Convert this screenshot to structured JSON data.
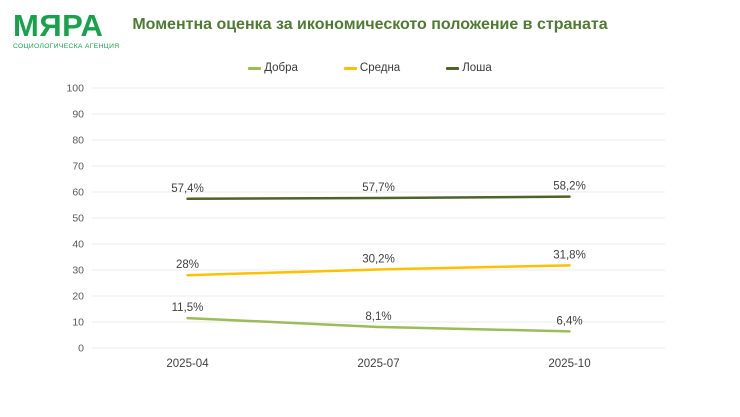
{
  "logo": {
    "name": "МЯРА",
    "subtitle": "СОЦИОЛОГИЧЕСКА АГЕНЦИЯ",
    "color": "#17a24b"
  },
  "chart_data": {
    "type": "line",
    "title": "Моментна оценка за икономическото положение в страната",
    "title_color": "#4e7b33",
    "categories": [
      "2025-04",
      "2025-07",
      "2025-10"
    ],
    "series": [
      {
        "key": "dobra",
        "name": "Добра",
        "color": "#9cbb59",
        "values": [
          11.5,
          8.1,
          6.4
        ],
        "point_labels": [
          "11,5%",
          "8,1%",
          "6,4%"
        ]
      },
      {
        "key": "sredna",
        "name": "Средна",
        "color": "#ffc000",
        "values": [
          28,
          30.2,
          31.8
        ],
        "point_labels": [
          "28%",
          "30,2%",
          "31,8%"
        ]
      },
      {
        "key": "losha",
        "name": "Лоша",
        "color": "#4f6228",
        "values": [
          57.4,
          57.7,
          58.2
        ],
        "point_labels": [
          "57,4%",
          "57,7%",
          "58,2%"
        ]
      }
    ],
    "xlabel": "",
    "ylabel": "",
    "ylim": [
      0,
      100
    ],
    "ytick_step": 10,
    "grid": true,
    "legend_position": "top",
    "gridline_color": "#ebebeb",
    "axis_label_color": "#595959",
    "data_label_color": "#3f3f3f"
  }
}
